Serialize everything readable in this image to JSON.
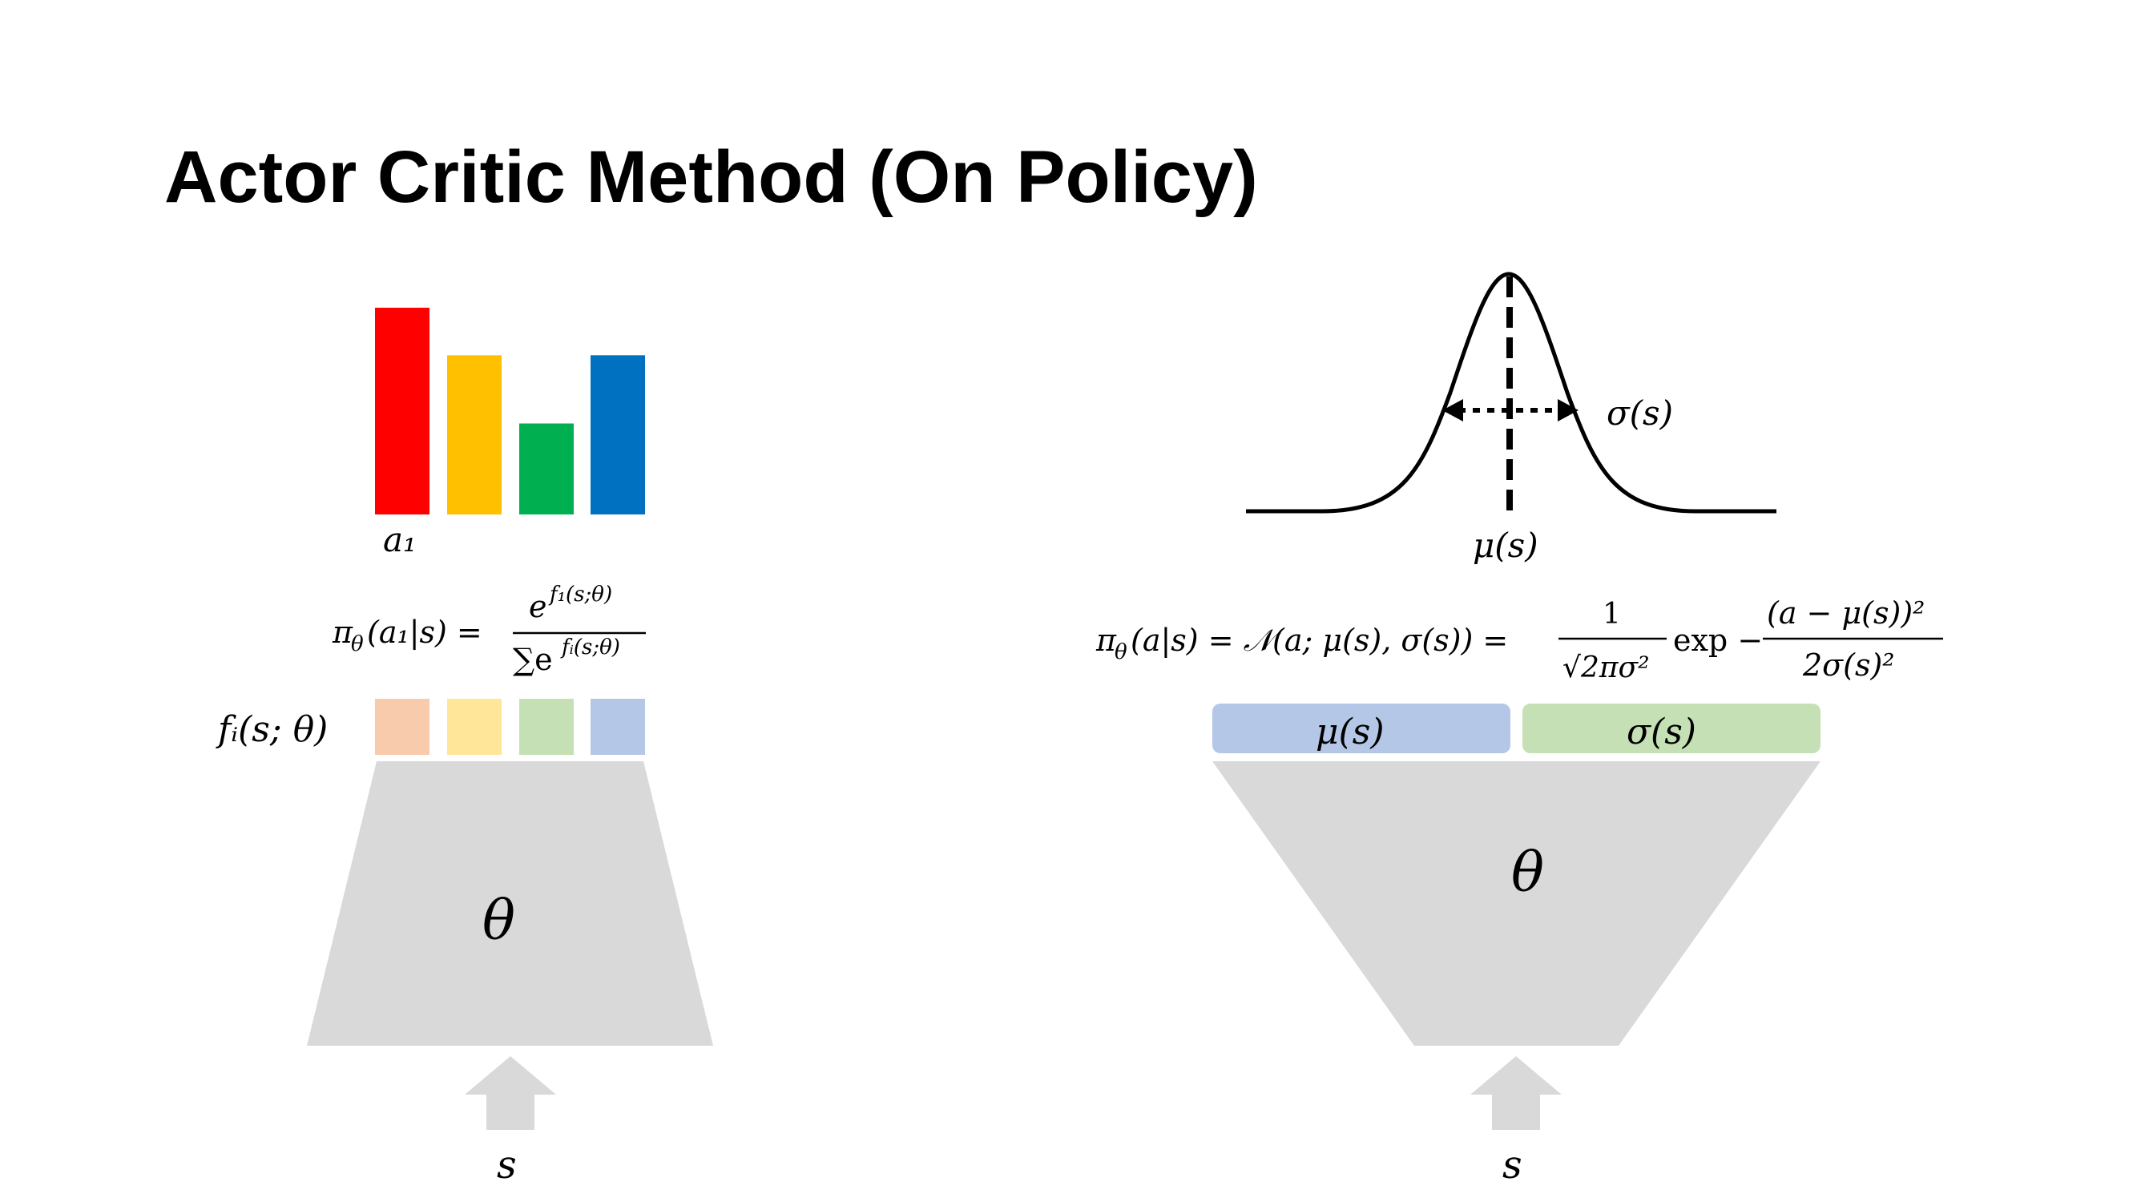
{
  "slide": {
    "title": "Actor Critic Method (On Policy)"
  },
  "discrete": {
    "bar_label": "a₁",
    "softmax_lhs": "π",
    "softmax_lhs_sub": "θ",
    "softmax_lhs_args": "(a₁|s) =",
    "softmax_num_base": "e",
    "softmax_num_exp": "f₁(s;θ)",
    "softmax_den_sum": "∑e",
    "softmax_den_exp": "fᵢ(s;θ)",
    "logits_label": "fᵢ(s; θ)",
    "network_label": "θ",
    "input_label": "s",
    "bar_colors": [
      "#FF0000",
      "#FFC000",
      "#00B050",
      "#0070C0"
    ],
    "logit_colors": [
      "#F8CBAD",
      "#FFE699",
      "#C5E0B4",
      "#B4C7E7"
    ],
    "bar_heights": [
      1.0,
      0.77,
      0.44,
      0.77
    ]
  },
  "continuous": {
    "sigma_label": "σ(s)",
    "mu_label": "μ(s)",
    "gauss_lhs": "π",
    "gauss_lhs_sub": "θ",
    "gauss_mid": "(a|s) = 𝒩(a; μ(s), σ(s)) =",
    "gauss_frac1_num": "1",
    "gauss_frac1_den": "√2πσ²",
    "gauss_exp": "exp −",
    "gauss_frac2_num": "(a − μ(s))²",
    "gauss_frac2_den": "2σ(s)²",
    "head_mu_label": "μ(s)",
    "head_sigma_label": "σ(s)",
    "network_label": "θ",
    "input_label": "s",
    "head_colors": [
      "#B4C7E7",
      "#C5E0B4"
    ],
    "network_color": "#D9D9D9"
  }
}
